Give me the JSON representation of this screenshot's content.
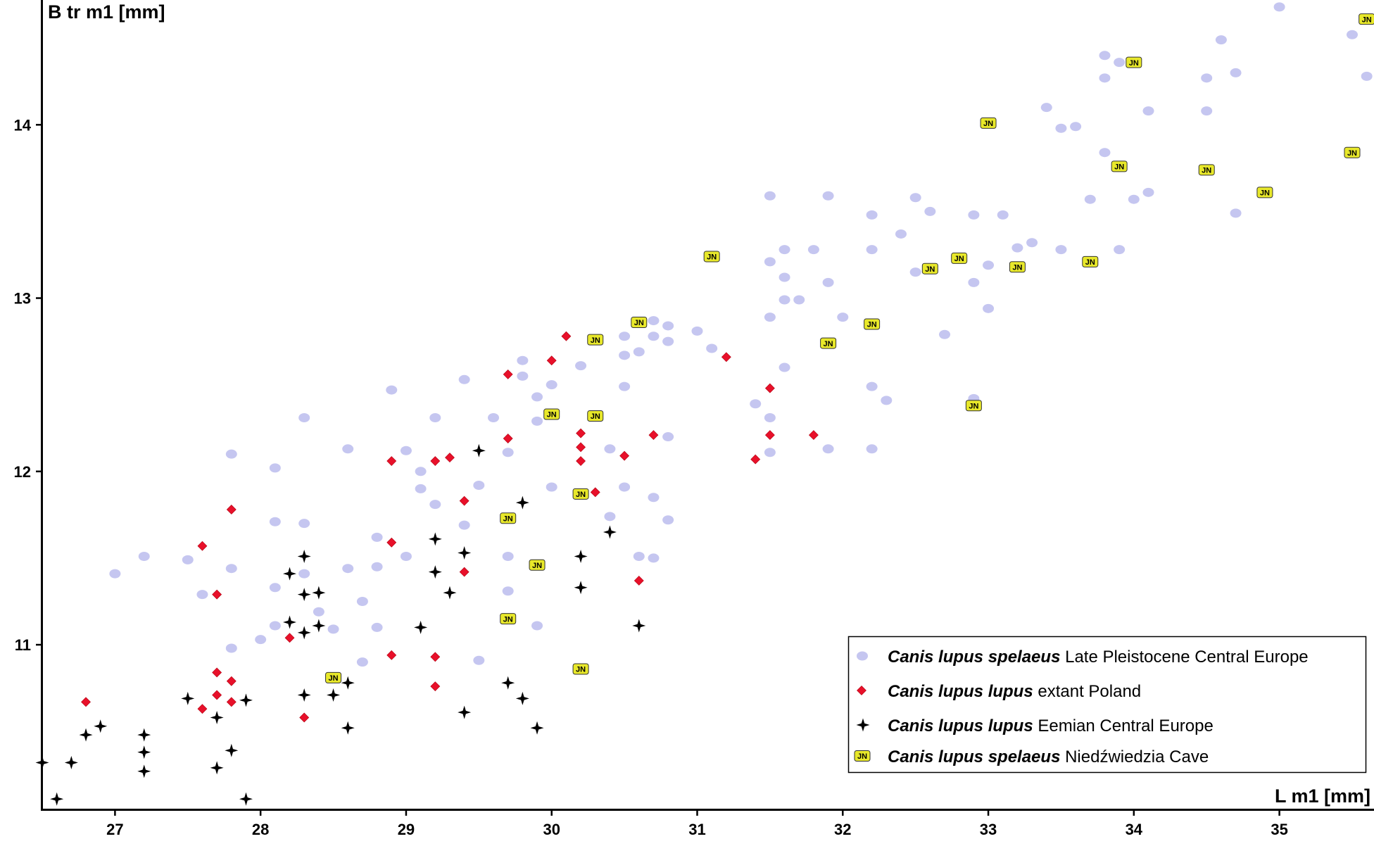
{
  "chart_data": {
    "type": "scatter",
    "title": "",
    "xlabel": "L m1 [mm]",
    "ylabel": "B tr m1 [mm]",
    "xlim": [
      26.5,
      35.65
    ],
    "ylim": [
      10.05,
      14.72
    ],
    "x_ticks": [
      "27",
      "28",
      "29",
      "30",
      "31",
      "32",
      "33",
      "34",
      "35"
    ],
    "y_ticks": [
      "11",
      "12",
      "13",
      "14"
    ],
    "grid": false,
    "legend_position": "bottom-right",
    "colors": {
      "spelaeus_central": "#c5c6f0",
      "lupus_poland": "#e8102a",
      "lupus_eemian": "#000000",
      "spelaeus_cave_fill": "#e8e82a"
    },
    "legend_items": [
      {
        "italic": "Canis lupus spelaeus",
        "text": " Late Pleistocene Central Europe"
      },
      {
        "italic": "Canis lupus lupus",
        "text": " extant Poland"
      },
      {
        "italic": "Canis lupus lupus",
        "text": " Eemian Central Europe"
      },
      {
        "italic": "Canis lupus spelaeus",
        "text": " Niedźwiedzia Cave"
      }
    ],
    "marker_label": "JN",
    "series": [
      {
        "marker": "ellipse",
        "points": [
          [
            27.0,
            11.41
          ],
          [
            27.2,
            11.51
          ],
          [
            27.5,
            11.49
          ],
          [
            27.6,
            11.29
          ],
          [
            27.8,
            12.1
          ],
          [
            27.8,
            11.44
          ],
          [
            27.8,
            10.98
          ],
          [
            28.0,
            11.03
          ],
          [
            28.1,
            11.33
          ],
          [
            28.1,
            11.11
          ],
          [
            28.1,
            12.02
          ],
          [
            28.1,
            11.71
          ],
          [
            28.3,
            12.31
          ],
          [
            28.3,
            11.7
          ],
          [
            28.3,
            11.41
          ],
          [
            28.4,
            11.19
          ],
          [
            28.5,
            11.09
          ],
          [
            28.6,
            11.44
          ],
          [
            28.6,
            12.13
          ],
          [
            28.7,
            11.25
          ],
          [
            28.7,
            10.9
          ],
          [
            28.8,
            11.45
          ],
          [
            28.8,
            11.62
          ],
          [
            28.8,
            11.1
          ],
          [
            28.9,
            12.47
          ],
          [
            29.0,
            12.12
          ],
          [
            29.0,
            11.51
          ],
          [
            29.1,
            12.0
          ],
          [
            29.1,
            11.9
          ],
          [
            29.2,
            12.31
          ],
          [
            29.2,
            11.81
          ],
          [
            29.4,
            12.53
          ],
          [
            29.4,
            11.69
          ],
          [
            29.5,
            11.92
          ],
          [
            29.5,
            10.91
          ],
          [
            29.6,
            12.31
          ],
          [
            29.7,
            12.11
          ],
          [
            29.7,
            11.51
          ],
          [
            29.7,
            11.31
          ],
          [
            29.8,
            12.64
          ],
          [
            29.8,
            12.55
          ],
          [
            29.9,
            12.43
          ],
          [
            29.9,
            12.29
          ],
          [
            29.9,
            11.11
          ],
          [
            30.0,
            12.5
          ],
          [
            30.0,
            11.91
          ],
          [
            30.2,
            12.61
          ],
          [
            30.4,
            12.13
          ],
          [
            30.4,
            11.74
          ],
          [
            30.5,
            11.91
          ],
          [
            30.5,
            12.49
          ],
          [
            30.5,
            12.67
          ],
          [
            30.5,
            12.78
          ],
          [
            30.6,
            12.69
          ],
          [
            30.6,
            11.51
          ],
          [
            30.7,
            12.78
          ],
          [
            30.7,
            11.85
          ],
          [
            30.7,
            11.5
          ],
          [
            30.7,
            12.87
          ],
          [
            30.8,
            12.84
          ],
          [
            30.8,
            12.75
          ],
          [
            30.8,
            11.72
          ],
          [
            30.8,
            12.2
          ],
          [
            31.0,
            12.81
          ],
          [
            31.1,
            12.71
          ],
          [
            31.4,
            12.39
          ],
          [
            31.5,
            13.59
          ],
          [
            31.5,
            13.21
          ],
          [
            31.5,
            12.89
          ],
          [
            31.5,
            12.31
          ],
          [
            31.5,
            12.11
          ],
          [
            31.6,
            13.12
          ],
          [
            31.6,
            12.99
          ],
          [
            31.6,
            12.6
          ],
          [
            31.6,
            13.28
          ],
          [
            31.7,
            12.99
          ],
          [
            31.8,
            13.28
          ],
          [
            31.9,
            13.09
          ],
          [
            31.9,
            12.13
          ],
          [
            31.9,
            13.59
          ],
          [
            32.0,
            12.89
          ],
          [
            32.2,
            13.48
          ],
          [
            32.2,
            13.28
          ],
          [
            32.2,
            12.49
          ],
          [
            32.2,
            12.13
          ],
          [
            32.3,
            12.41
          ],
          [
            32.4,
            13.37
          ],
          [
            32.5,
            13.15
          ],
          [
            32.5,
            13.58
          ],
          [
            32.6,
            13.5
          ],
          [
            32.7,
            12.79
          ],
          [
            32.9,
            13.09
          ],
          [
            32.9,
            13.48
          ],
          [
            32.9,
            12.42
          ],
          [
            33.0,
            13.19
          ],
          [
            33.0,
            12.94
          ],
          [
            33.1,
            13.48
          ],
          [
            33.2,
            13.29
          ],
          [
            33.3,
            13.32
          ],
          [
            33.4,
            14.1
          ],
          [
            33.5,
            13.98
          ],
          [
            33.5,
            13.28
          ],
          [
            33.6,
            13.99
          ],
          [
            33.7,
            13.57
          ],
          [
            33.8,
            14.4
          ],
          [
            33.8,
            14.27
          ],
          [
            33.8,
            13.84
          ],
          [
            33.9,
            14.36
          ],
          [
            33.9,
            13.28
          ],
          [
            34.0,
            13.57
          ],
          [
            34.1,
            14.08
          ],
          [
            34.1,
            13.61
          ],
          [
            34.5,
            14.08
          ],
          [
            34.5,
            14.27
          ],
          [
            34.6,
            14.49
          ],
          [
            34.7,
            14.3
          ],
          [
            34.7,
            13.49
          ],
          [
            35.0,
            14.68
          ],
          [
            35.5,
            14.52
          ],
          [
            35.6,
            14.28
          ]
        ]
      },
      {
        "marker": "diamond",
        "points": [
          [
            26.8,
            10.67
          ],
          [
            27.6,
            11.57
          ],
          [
            27.6,
            10.63
          ],
          [
            27.7,
            11.29
          ],
          [
            27.7,
            10.84
          ],
          [
            27.7,
            10.71
          ],
          [
            27.8,
            10.79
          ],
          [
            27.8,
            10.67
          ],
          [
            27.8,
            11.78
          ],
          [
            28.2,
            11.04
          ],
          [
            28.3,
            10.58
          ],
          [
            28.9,
            12.06
          ],
          [
            28.9,
            11.59
          ],
          [
            28.9,
            10.94
          ],
          [
            29.2,
            12.06
          ],
          [
            29.2,
            10.93
          ],
          [
            29.2,
            10.76
          ],
          [
            29.3,
            12.08
          ],
          [
            29.4,
            11.83
          ],
          [
            29.4,
            11.42
          ],
          [
            29.7,
            12.19
          ],
          [
            29.7,
            12.56
          ],
          [
            30.0,
            12.64
          ],
          [
            30.1,
            12.78
          ],
          [
            30.2,
            12.22
          ],
          [
            30.2,
            12.14
          ],
          [
            30.2,
            12.06
          ],
          [
            30.3,
            11.88
          ],
          [
            30.5,
            12.09
          ],
          [
            30.6,
            11.37
          ],
          [
            30.7,
            12.21
          ],
          [
            31.2,
            12.66
          ],
          [
            31.4,
            12.07
          ],
          [
            31.5,
            12.48
          ],
          [
            31.5,
            12.21
          ],
          [
            31.8,
            12.21
          ]
        ]
      },
      {
        "marker": "star4",
        "points": [
          [
            26.5,
            10.32
          ],
          [
            26.6,
            10.11
          ],
          [
            26.7,
            10.32
          ],
          [
            26.8,
            10.48
          ],
          [
            26.9,
            10.53
          ],
          [
            27.2,
            10.48
          ],
          [
            27.2,
            10.27
          ],
          [
            27.2,
            10.38
          ],
          [
            27.5,
            10.69
          ],
          [
            27.7,
            10.58
          ],
          [
            27.7,
            10.29
          ],
          [
            27.8,
            10.39
          ],
          [
            27.9,
            10.68
          ],
          [
            27.9,
            10.11
          ],
          [
            28.2,
            11.41
          ],
          [
            28.2,
            11.13
          ],
          [
            28.3,
            11.51
          ],
          [
            28.3,
            11.07
          ],
          [
            28.3,
            10.71
          ],
          [
            28.3,
            11.29
          ],
          [
            28.4,
            11.11
          ],
          [
            28.4,
            11.3
          ],
          [
            28.5,
            10.71
          ],
          [
            28.6,
            10.52
          ],
          [
            28.6,
            10.78
          ],
          [
            29.1,
            11.1
          ],
          [
            29.2,
            11.42
          ],
          [
            29.2,
            11.61
          ],
          [
            29.3,
            11.3
          ],
          [
            29.4,
            10.61
          ],
          [
            29.4,
            11.53
          ],
          [
            29.5,
            12.12
          ],
          [
            29.7,
            10.78
          ],
          [
            29.8,
            11.82
          ],
          [
            29.8,
            10.69
          ],
          [
            29.9,
            10.52
          ],
          [
            30.2,
            11.51
          ],
          [
            30.2,
            11.33
          ],
          [
            30.4,
            11.65
          ],
          [
            30.6,
            11.11
          ]
        ]
      },
      {
        "marker": "jn",
        "points": [
          [
            28.5,
            10.81
          ],
          [
            29.7,
            11.15
          ],
          [
            29.7,
            11.73
          ],
          [
            29.9,
            11.46
          ],
          [
            30.0,
            12.33
          ],
          [
            30.2,
            10.86
          ],
          [
            30.2,
            11.87
          ],
          [
            30.3,
            12.32
          ],
          [
            30.3,
            12.76
          ],
          [
            30.6,
            12.86
          ],
          [
            31.1,
            13.24
          ],
          [
            31.9,
            12.74
          ],
          [
            32.2,
            12.85
          ],
          [
            32.6,
            13.17
          ],
          [
            32.8,
            13.23
          ],
          [
            32.9,
            12.38
          ],
          [
            33.0,
            14.01
          ],
          [
            33.2,
            13.18
          ],
          [
            33.7,
            13.21
          ],
          [
            33.9,
            13.76
          ],
          [
            34.0,
            14.36
          ],
          [
            34.5,
            13.74
          ],
          [
            34.9,
            13.61
          ],
          [
            35.5,
            13.84
          ],
          [
            35.6,
            14.61
          ]
        ]
      }
    ]
  }
}
